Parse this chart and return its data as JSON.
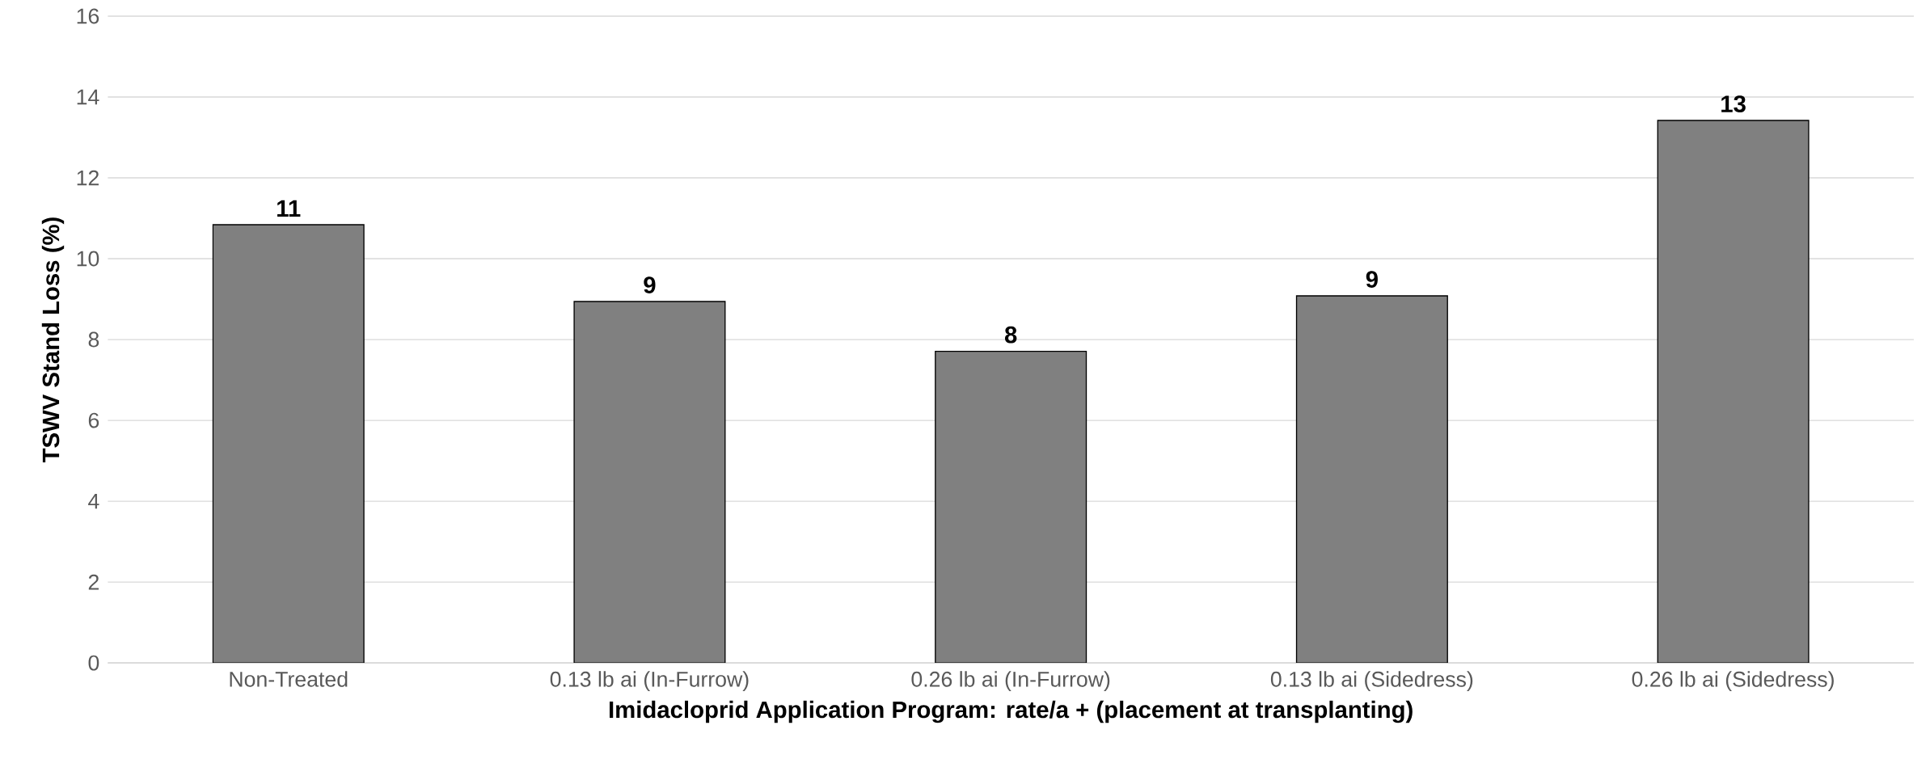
{
  "chart_data": {
    "type": "bar",
    "xlabel": "Imidacloprid Application Program: rate/a + (placement at transplanting)",
    "ylabel": "TSWV Stand Loss (%)",
    "categories": [
      "Non-Treated",
      "0.13 lb ai (In-Furrow)",
      "0.26 lb ai (In-Furrow)",
      "0.13 lb ai (Sidedress)",
      "0.26 lb ai (Sidedress)"
    ],
    "values": [
      10.84,
      8.94,
      7.71,
      9.08,
      13.42
    ],
    "value_labels": [
      "11",
      "9",
      "8",
      "9",
      "13"
    ],
    "color": "#808080",
    "ylim": [
      0,
      16
    ],
    "yticks": [
      0,
      2,
      4,
      6,
      8,
      10,
      12,
      14,
      16
    ],
    "grid": "y"
  }
}
